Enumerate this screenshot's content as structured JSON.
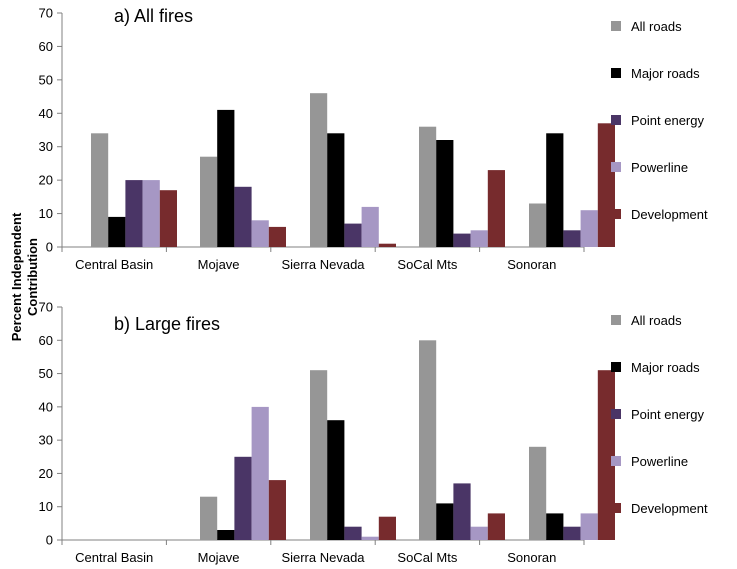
{
  "figure": {
    "ylabel_line1": "Percent Independent",
    "ylabel_line2": "Contribution"
  },
  "chart_data": [
    {
      "type": "bar",
      "title": "a)  All fires",
      "ylabel": "Percent Independent Contribution",
      "ylim": [
        0,
        70
      ],
      "yticks": [
        0,
        10,
        20,
        30,
        40,
        50,
        60,
        70
      ],
      "grid": false,
      "legend_position": "right",
      "categories": [
        "Central Basin",
        "Mojave",
        "Sierra Nevada",
        "SoCal Mts",
        "Sonoran"
      ],
      "series": [
        {
          "name": "All roads",
          "color": "#969696",
          "values": [
            34,
            27,
            46,
            36,
            13
          ]
        },
        {
          "name": "Major roads",
          "color": "#000000",
          "values": [
            9,
            41,
            34,
            32,
            34
          ]
        },
        {
          "name": "Point energy",
          "color": "#4a3566",
          "values": [
            20,
            18,
            7,
            4,
            5
          ]
        },
        {
          "name": "Powerline",
          "color": "#a697c4",
          "values": [
            20,
            8,
            12,
            5,
            11
          ]
        },
        {
          "name": "Development",
          "color": "#772b2d",
          "values": [
            17,
            6,
            1,
            23,
            37
          ]
        }
      ]
    },
    {
      "type": "bar",
      "title": "b)  Large fires",
      "ylabel": "Percent Independent Contribution",
      "ylim": [
        0,
        70
      ],
      "yticks": [
        0,
        10,
        20,
        30,
        40,
        50,
        60,
        70
      ],
      "grid": false,
      "legend_position": "right",
      "categories": [
        "Central Basin",
        "Mojave",
        "Sierra Nevada",
        "SoCal Mts",
        "Sonoran"
      ],
      "series": [
        {
          "name": "All roads",
          "color": "#969696",
          "values": [
            0,
            13,
            51,
            60,
            28
          ]
        },
        {
          "name": "Major roads",
          "color": "#000000",
          "values": [
            0,
            3,
            36,
            11,
            8
          ]
        },
        {
          "name": "Point energy",
          "color": "#4a3566",
          "values": [
            0,
            25,
            4,
            17,
            4
          ]
        },
        {
          "name": "Powerline",
          "color": "#a697c4",
          "values": [
            0,
            40,
            1,
            4,
            8
          ]
        },
        {
          "name": "Development",
          "color": "#772b2d",
          "values": [
            0,
            18,
            7,
            8,
            51
          ]
        }
      ]
    }
  ]
}
